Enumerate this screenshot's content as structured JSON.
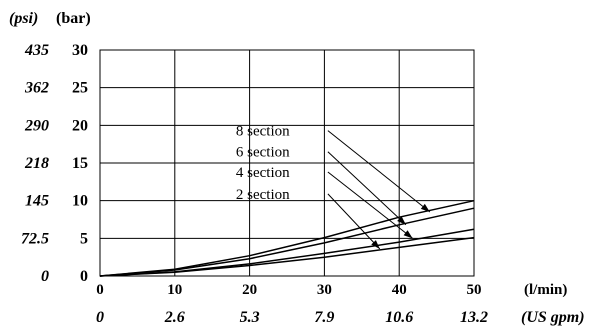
{
  "chart_data": {
    "type": "line",
    "x_label": "(l/min)",
    "x_label_secondary": "(US gpm)",
    "y_label": "(bar)",
    "y_label_secondary": "(psi)",
    "x_ticks": [
      "0",
      "10",
      "20",
      "30",
      "40",
      "50"
    ],
    "x_ticks_secondary": [
      "0",
      "2.6",
      "5.3",
      "7.9",
      "10.6",
      "13.2"
    ],
    "y_ticks": [
      "0",
      "5",
      "10",
      "15",
      "20",
      "25",
      "30"
    ],
    "y_ticks_secondary": [
      "0",
      "72.5",
      "145",
      "218",
      "290",
      "362",
      "435"
    ],
    "xlim": [
      0,
      50
    ],
    "ylim": [
      0,
      30
    ],
    "grid": true,
    "series": [
      {
        "name": "8 section",
        "x": [
          0,
          10,
          20,
          30,
          40,
          50
        ],
        "y": [
          0,
          0.9,
          2.7,
          5.1,
          7.8,
          10.0
        ]
      },
      {
        "name": "6 section",
        "x": [
          0,
          10,
          20,
          30,
          40,
          50
        ],
        "y": [
          0,
          0.8,
          2.3,
          4.4,
          6.8,
          9.0
        ]
      },
      {
        "name": "4 section",
        "x": [
          0,
          10,
          20,
          30,
          40,
          50
        ],
        "y": [
          0,
          0.55,
          1.6,
          3.0,
          4.5,
          6.2
        ]
      },
      {
        "name": "2 section",
        "x": [
          0,
          10,
          20,
          30,
          40,
          50
        ],
        "y": [
          0,
          0.5,
          1.4,
          2.5,
          3.8,
          5.1
        ]
      }
    ],
    "annotations": [
      {
        "series": "8 section",
        "label_at": [
          31,
          19.3
        ],
        "arrow_to": [
          44.1,
          8.5
        ]
      },
      {
        "series": "6 section",
        "label_at": [
          31,
          16.5
        ],
        "arrow_to": [
          40.9,
          6.8
        ]
      },
      {
        "series": "4 section",
        "label_at": [
          31,
          13.8
        ],
        "arrow_to": [
          41.8,
          5.0
        ]
      },
      {
        "series": "2 section",
        "label_at": [
          31,
          10.9
        ],
        "arrow_to": [
          37.4,
          3.6
        ]
      }
    ]
  }
}
